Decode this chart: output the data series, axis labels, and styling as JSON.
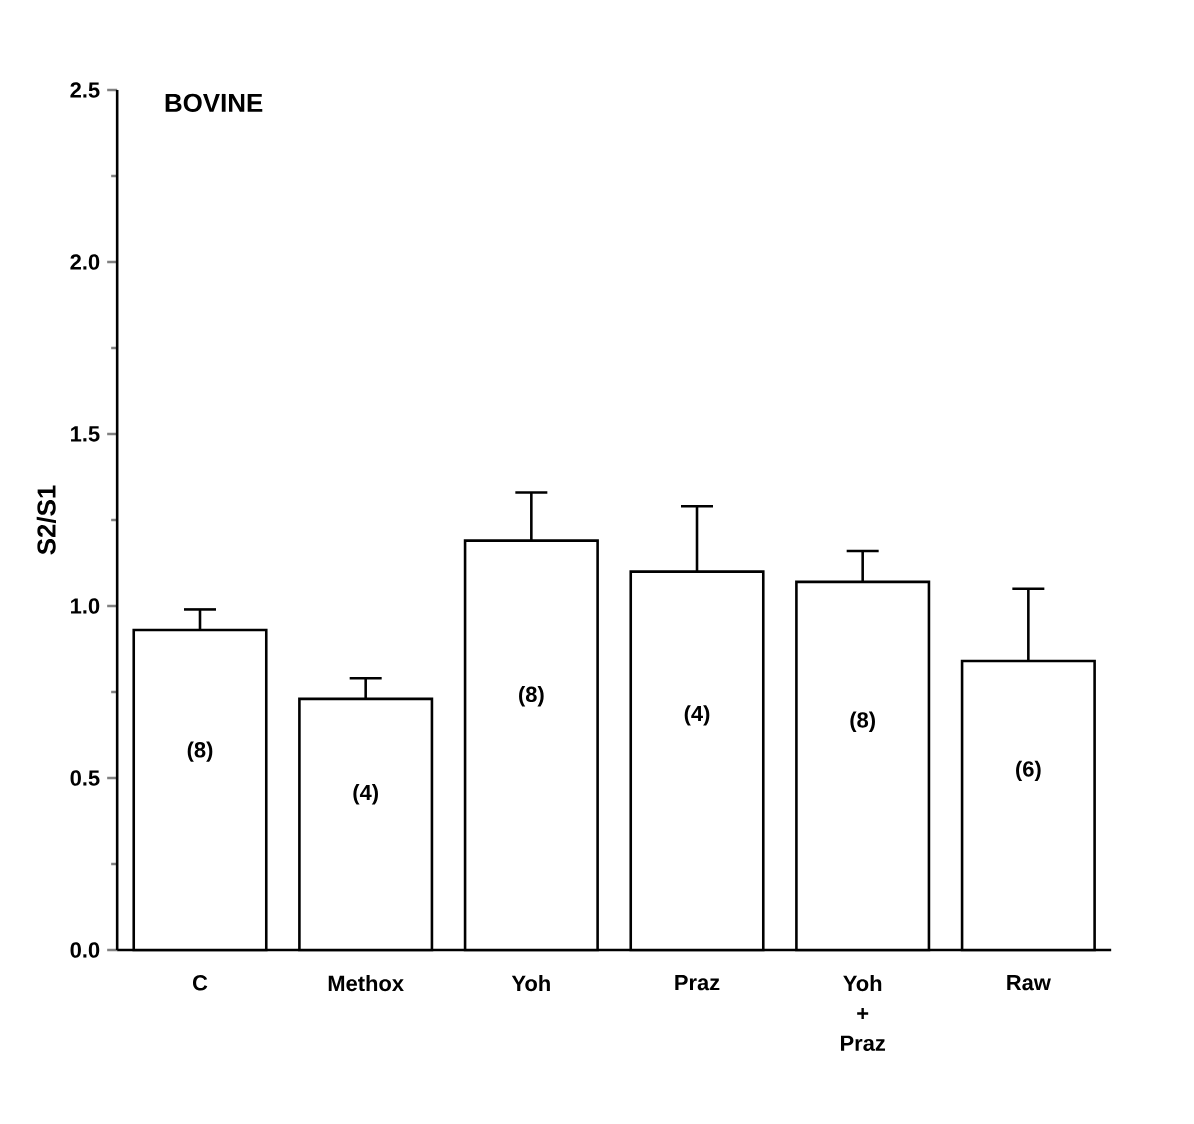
{
  "chart_data": {
    "type": "bar",
    "title": "BOVINE",
    "ylabel": "S2/S1",
    "categories": [
      "C",
      "Methox",
      "Yoh",
      "Praz",
      "Yoh + Praz",
      "Raw"
    ],
    "values": [
      0.93,
      0.73,
      1.19,
      1.1,
      1.07,
      0.84
    ],
    "errors": [
      0.06,
      0.06,
      0.14,
      0.19,
      0.09,
      0.21
    ],
    "color": "#ffffff",
    "ylim": [
      0,
      2.5
    ],
    "yticks": [
      {
        "value": 0,
        "label": "0.0"
      },
      {
        "value": 0.5,
        "label": "0.5"
      },
      {
        "value": 1,
        "label": "1.0"
      },
      {
        "value": 1.5,
        "label": "1.5"
      },
      {
        "value": 2,
        "label": "2.0"
      },
      {
        "value": 2.5,
        "label": "2.5"
      }
    ],
    "annotations": [
      "(8)",
      "(4)",
      "(8)",
      "(4)",
      "(8)",
      "(6)"
    ]
  }
}
